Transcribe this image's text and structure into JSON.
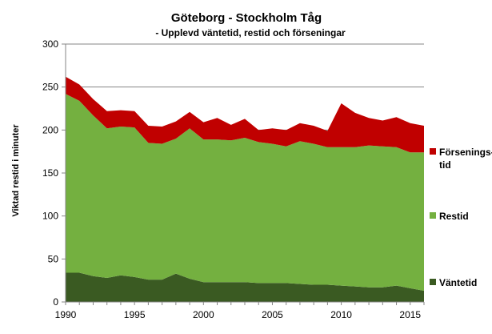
{
  "chart_data": {
    "type": "area",
    "stacked": true,
    "title": "Göteborg - Stockholm  Tåg",
    "subtitle": "- Upplevd väntetid, restid och förseningar",
    "xlabel": "",
    "ylabel": "Viktad restid i minuter",
    "xlim": [
      1990,
      2016
    ],
    "ylim": [
      0,
      300
    ],
    "x_ticks": [
      "1990",
      "1995",
      "2000",
      "2005",
      "2010",
      "2015"
    ],
    "y_ticks": [
      "0",
      "50",
      "100",
      "150",
      "200",
      "250",
      "300"
    ],
    "grid": true,
    "legend": "right",
    "x": [
      1990,
      1991,
      1992,
      1993,
      1994,
      1995,
      1996,
      1997,
      1998,
      1999,
      2000,
      2001,
      2002,
      2003,
      2004,
      2005,
      2006,
      2007,
      2008,
      2009,
      2010,
      2011,
      2012,
      2013,
      2014,
      2015,
      2016
    ],
    "series": [
      {
        "name": "Väntetid",
        "color": "#3a5a22",
        "values": [
          34,
          34,
          30,
          28,
          31,
          29,
          26,
          26,
          33,
          27,
          23,
          23,
          23,
          23,
          22,
          22,
          22,
          21,
          20,
          20,
          19,
          18,
          17,
          17,
          19,
          16,
          13
        ]
      },
      {
        "name": "Restid",
        "color": "#74b040",
        "values": [
          208,
          200,
          187,
          174,
          173,
          174,
          159,
          158,
          157,
          175,
          166,
          166,
          165,
          168,
          164,
          162,
          159,
          166,
          164,
          160,
          161,
          162,
          165,
          164,
          161,
          158,
          161
        ]
      },
      {
        "name": "Förseningstid",
        "legend_lines": [
          "Försenings-",
          "tid"
        ],
        "color": "#c00000",
        "values": [
          20,
          19,
          19,
          20,
          19,
          19,
          20,
          20,
          20,
          19,
          20,
          25,
          18,
          22,
          14,
          18,
          19,
          21,
          21,
          19,
          51,
          40,
          32,
          30,
          35,
          34,
          31
        ]
      }
    ]
  }
}
